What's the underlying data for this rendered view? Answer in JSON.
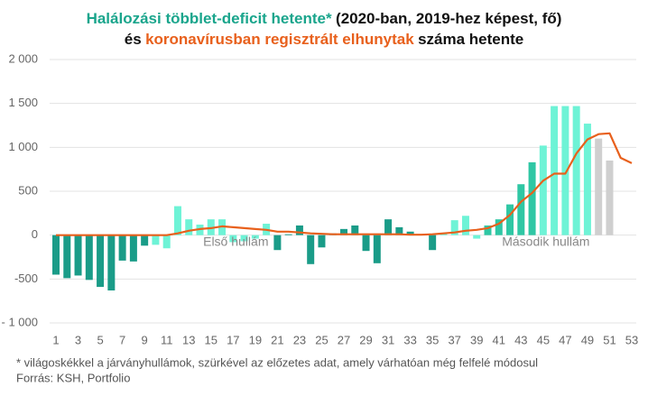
{
  "chart_data": {
    "type": "bar-line",
    "title": [
      [
        {
          "text": "Halálozási többlet-deficit hetente*",
          "color": "#1aa58c"
        },
        {
          "text": "(2020-ban, 2019-hez képest, fő)",
          "color": "#111111"
        }
      ],
      [
        {
          "text": "és",
          "color": "#111111"
        },
        {
          "text": "koronavírusban regisztrált elhunytak",
          "color": "#e8601c"
        },
        {
          "text": "száma hetente",
          "color": "#111111"
        }
      ]
    ],
    "categories": [
      1,
      null,
      3,
      null,
      5,
      null,
      7,
      null,
      9,
      null,
      11,
      null,
      13,
      null,
      15,
      null,
      17,
      null,
      19,
      null,
      21,
      null,
      23,
      null,
      25,
      null,
      27,
      null,
      29,
      null,
      31,
      null,
      33,
      null,
      35,
      null,
      37,
      null,
      39,
      null,
      41,
      null,
      43,
      null,
      45,
      null,
      47,
      null,
      49,
      null,
      51,
      null,
      53
    ],
    "series": [
      {
        "type": "bar",
        "values": [
          -450,
          -490,
          -460,
          -510,
          -590,
          -630,
          -290,
          -300,
          -120,
          -110,
          -150,
          330,
          180,
          120,
          180,
          180,
          -80,
          -70,
          -40,
          130,
          -170,
          10,
          110,
          -330,
          -140,
          20,
          70,
          110,
          -180,
          -320,
          180,
          90,
          40,
          10,
          -170,
          20,
          170,
          220,
          -40,
          110,
          180,
          350,
          580,
          830,
          1020,
          1470,
          1470,
          1470,
          1270,
          1100,
          850,
          null,
          null
        ],
        "colors": [
          "#1a9c88",
          "#1a9c88",
          "#1a9c88",
          "#1a9c88",
          "#1a9c88",
          "#1a9c88",
          "#1a9c88",
          "#1a9c88",
          "#1a9c88",
          "#6ef3d6",
          "#6ef3d6",
          "#6ef3d6",
          "#6ef3d6",
          "#6ef3d6",
          "#6ef3d6",
          "#6ef3d6",
          "#6ef3d6",
          "#6ef3d6",
          "#6ef3d6",
          "#6ef3d6",
          "#1a9c88",
          "#1a9c88",
          "#1a9c88",
          "#1a9c88",
          "#1a9c88",
          "#1a9c88",
          "#1a9c88",
          "#1a9c88",
          "#1a9c88",
          "#1a9c88",
          "#1a9c88",
          "#1a9c88",
          "#1a9c88",
          "#1a9c88",
          "#1a9c88",
          "#6ef3d6",
          "#6ef3d6",
          "#6ef3d6",
          "#6ef3d6",
          "#2fc7a4",
          "#2fc7a4",
          "#2fc7a4",
          "#2fc7a4",
          "#2fc7a4",
          "#6ef3d6",
          "#6ef3d6",
          "#6ef3d6",
          "#6ef3d6",
          "#6ef3d6",
          "#cfcfcf",
          "#cfcfcf",
          null,
          null
        ]
      },
      {
        "type": "line",
        "color": "#e8601c",
        "values": [
          0,
          0,
          0,
          0,
          0,
          0,
          0,
          0,
          0,
          0,
          0,
          20,
          50,
          70,
          80,
          100,
          90,
          80,
          70,
          60,
          40,
          40,
          30,
          20,
          15,
          10,
          10,
          10,
          10,
          10,
          10,
          10,
          5,
          5,
          10,
          20,
          30,
          50,
          60,
          80,
          130,
          230,
          380,
          480,
          620,
          700,
          700,
          930,
          1090,
          1150,
          1160,
          880,
          820
        ]
      }
    ],
    "ylim": [
      -1000,
      2000
    ],
    "yticks": [
      {
        "value": 2000,
        "label": "2 000"
      },
      {
        "value": 1500,
        "label": "1 500"
      },
      {
        "value": 1000,
        "label": "1 000"
      },
      500,
      0,
      -500,
      {
        "value": -1000,
        "label": "- 1 000"
      }
    ],
    "grid": true,
    "annotations": [
      {
        "text": "Első hullám",
        "x": 17
      },
      {
        "text": "Második hullám",
        "x": 45
      }
    ],
    "footnotes": [
      "* világoskékkel a járványhullámok, szürkével az előzetes adat, amely várhatóan még felfelé módosul",
      "Forrás: KSH, Portfolio"
    ]
  }
}
